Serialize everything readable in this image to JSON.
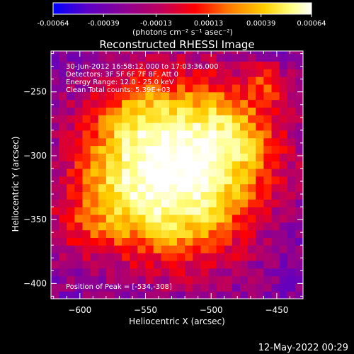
{
  "colorbar": {
    "tick_labels": [
      "-0.00064",
      "-0.00039",
      "-0.00013",
      "0.00013",
      "0.00039",
      "0.00064"
    ],
    "tick_values": [
      -0.00064,
      -0.00039,
      -0.00013,
      0.00013,
      0.00039,
      0.00064
    ],
    "range": [
      -0.00064,
      0.00064
    ],
    "units_label": "(photons cm⁻² s⁻¹ asec⁻²)",
    "colormap": [
      "#0000ff",
      "#5a00c8",
      "#8a0096",
      "#c0005a",
      "#ff0000",
      "#ff7a00",
      "#ffd000",
      "#ffff80",
      "#ffffff"
    ]
  },
  "chart_data": {
    "type": "heatmap",
    "title": "Reconstructed RHESSI Image",
    "xlabel": "Heliocentric X (arcsec)",
    "ylabel": "Heliocentric Y (arcsec)",
    "xlim": [
      -622,
      -430
    ],
    "ylim": [
      -412,
      -218
    ],
    "x_ticks": [
      -600,
      -550,
      -500,
      -450
    ],
    "x_tick_labels": [
      "−600",
      "−550",
      "−500",
      "−450"
    ],
    "y_ticks": [
      -400,
      -350,
      -300,
      -250
    ],
    "y_tick_labels": [
      "−400",
      "−350",
      "−300",
      "−250"
    ],
    "peak": [
      -534,
      -308
    ],
    "annotations": [
      "30-Jun-2012 16:58:12.000 to 17:03:36.000",
      "Detectors: 3F 5F 6F 7F 8F, Att 0",
      "Energy Range: 12.0 - 25.0 keV",
      "Clean     Total counts: 5.39E+03"
    ],
    "peak_label": "Position of Peak = [-534,-308]"
  },
  "timestamp": "12-May-2022 00:29"
}
